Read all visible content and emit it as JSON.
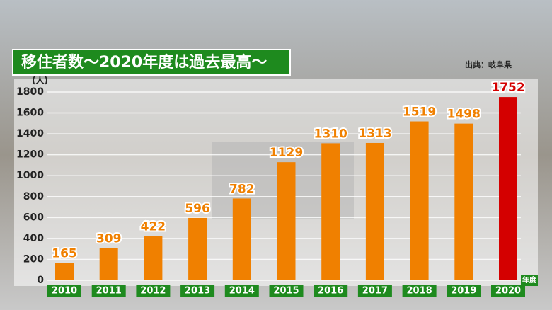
{
  "chart_data": {
    "type": "bar",
    "title": "移住者数～2020年度は過去最高～",
    "source": "出典：岐阜県",
    "y_label": "(人)",
    "x_label": "年度",
    "categories": [
      "2010",
      "2011",
      "2012",
      "2013",
      "2014",
      "2015",
      "2016",
      "2017",
      "2018",
      "2019",
      "2020"
    ],
    "values": [
      165,
      309,
      422,
      596,
      782,
      1129,
      1310,
      1313,
      1519,
      1498,
      1752
    ],
    "colors": [
      "#f08000",
      "#f08000",
      "#f08000",
      "#f08000",
      "#f08000",
      "#f08000",
      "#f08000",
      "#f08000",
      "#f08000",
      "#f08000",
      "#d40000"
    ],
    "ylim": [
      0,
      1800
    ],
    "yticks": [
      0,
      200,
      400,
      600,
      800,
      1000,
      1200,
      1400,
      1600,
      1800
    ],
    "grid": true
  }
}
